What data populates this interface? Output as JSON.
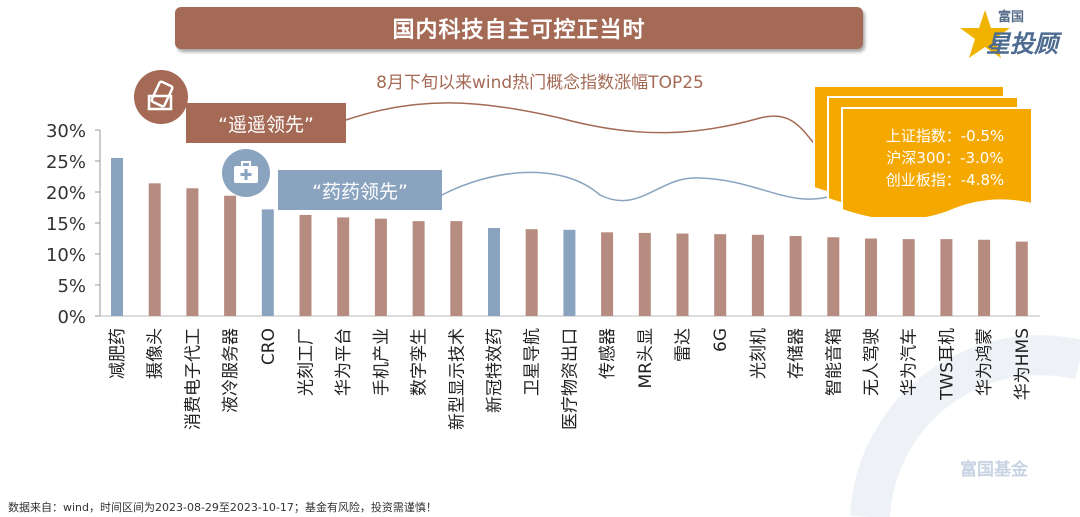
{
  "banner": {
    "title": "国内科技自主可控正当时"
  },
  "logo": {
    "small": "富国",
    "brand": "星投顾"
  },
  "callouts": {
    "first": "“遥遥领先”",
    "second": "“药药领先”"
  },
  "note": {
    "line1": "上证指数：-0.5%",
    "line2": "沪深300：-3.0%",
    "line3": "创业板指：-4.8%"
  },
  "footer": {
    "text": "数据来自：wind，时间区间为2023-08-29至2023-10-17；基金有风险，投资需谨慎！"
  },
  "watermark": {
    "text": "富国基金"
  },
  "colors": {
    "tech": "#b78c80",
    "pharma": "#8aa3bf",
    "accent": "#a46a55",
    "note": "#f5a800"
  },
  "chart_data": {
    "type": "bar",
    "title": "8月下旬以来wind热门概念指数涨幅TOP25",
    "categories": [
      "减肥药",
      "摄像头",
      "消费电子代工",
      "液冷服务器",
      "CRO",
      "光刻工厂",
      "华为平台",
      "手机产业",
      "数字孪生",
      "新型显示技术",
      "新冠特效药",
      "卫星导航",
      "医疗物资出口",
      "传感器",
      "MR头显",
      "雷达",
      "6G",
      "光刻机",
      "存储器",
      "智能音箱",
      "无人驾驶",
      "华为汽车",
      "TWS耳机",
      "华为鸿蒙",
      "华为HMS"
    ],
    "values": [
      25.5,
      21.4,
      20.6,
      19.4,
      17.2,
      16.3,
      15.9,
      15.7,
      15.3,
      15.3,
      14.2,
      14.0,
      13.9,
      13.5,
      13.4,
      13.3,
      13.2,
      13.1,
      12.9,
      12.7,
      12.5,
      12.4,
      12.4,
      12.3,
      12.0
    ],
    "groups": [
      "pharma",
      "tech",
      "tech",
      "tech",
      "pharma",
      "tech",
      "tech",
      "tech",
      "tech",
      "tech",
      "pharma",
      "tech",
      "pharma",
      "tech",
      "tech",
      "tech",
      "tech",
      "tech",
      "tech",
      "tech",
      "tech",
      "tech",
      "tech",
      "tech",
      "tech"
    ],
    "yticks": [
      "0%",
      "5%",
      "10%",
      "15%",
      "20%",
      "25%",
      "30%"
    ],
    "ylim": [
      0,
      30
    ],
    "grid": false
  }
}
